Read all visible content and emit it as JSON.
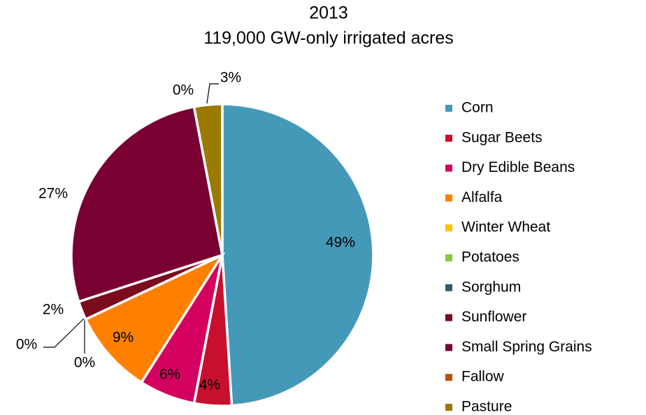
{
  "chart_data": {
    "type": "pie",
    "title": "2013",
    "subtitle": "119,000 GW-only irrigated acres",
    "categories": [
      "Corn",
      "Sugar Beets",
      "Dry Edible Beans",
      "Alfalfa",
      "Winter Wheat",
      "Potatoes",
      "Sorghum",
      "Sunflower",
      "Small Spring Grains",
      "Fallow",
      "Pasture"
    ],
    "values": [
      49,
      4,
      6,
      9,
      0,
      0,
      0,
      2,
      27,
      0,
      3
    ],
    "value_labels": [
      "49%",
      "4%",
      "6%",
      "9%",
      "0%",
      "0%",
      null,
      "2%",
      "27%",
      "0%",
      "3%"
    ],
    "colors": [
      "#4599b8",
      "#c8102e",
      "#d4005f",
      "#ff8000",
      "#ffc000",
      "#8dc63f",
      "#2e5b6e",
      "#7a0c1e",
      "#7a0033",
      "#b5510f",
      "#9c7a00"
    ],
    "legend": "right"
  }
}
